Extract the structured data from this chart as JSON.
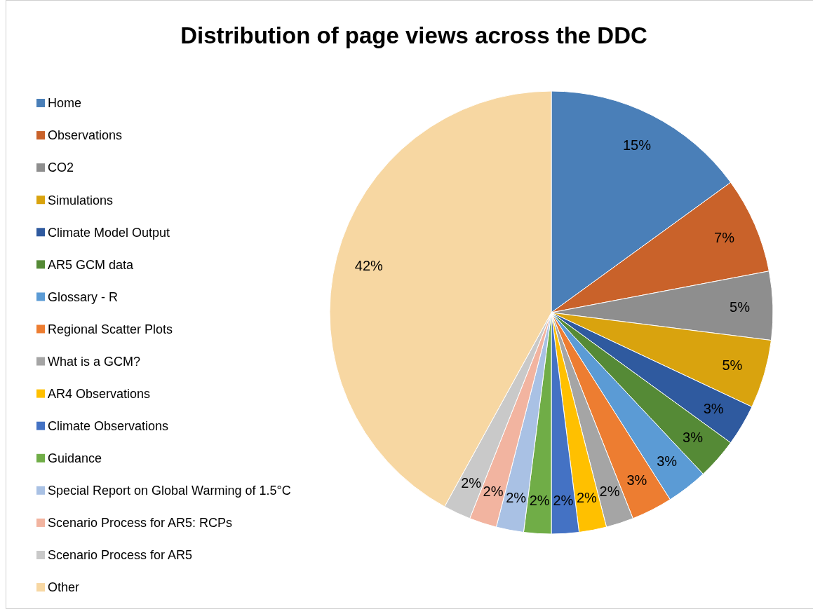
{
  "chart_data": {
    "type": "pie",
    "title": "Distribution of page views across the DDC",
    "categories": [
      "Home",
      "Observations",
      "CO2",
      "Simulations",
      "Climate Model Output",
      "AR5 GCM data",
      "Glossary - R",
      "Regional Scatter Plots",
      "What is a GCM?",
      "AR4 Observations",
      "Climate Observations",
      "Guidance",
      "Special Report on Global Warming of 1.5°C",
      "Scenario Process for AR5: RCPs",
      "Scenario Process for AR5",
      "Other"
    ],
    "values": [
      15,
      7,
      5,
      5,
      3,
      3,
      3,
      3,
      2,
      2,
      2,
      2,
      2,
      2,
      2,
      42
    ],
    "colors": [
      "#4a7fb8",
      "#c9622a",
      "#8e8e8e",
      "#d9a30e",
      "#2f5a9f",
      "#558a36",
      "#5b9bd5",
      "#ed7d31",
      "#a5a5a5",
      "#ffc000",
      "#4472c4",
      "#70ad47",
      "#a9c1e4",
      "#f2b4a0",
      "#c9c9c9",
      "#f7d7a2"
    ],
    "value_labels": [
      "15%",
      "7%",
      "5%",
      "5%",
      "3%",
      "3%",
      "3%",
      "3%",
      "2%",
      "2%",
      "2%",
      "2%",
      "2%",
      "2%",
      "2%",
      "42%"
    ],
    "legend": "left"
  }
}
